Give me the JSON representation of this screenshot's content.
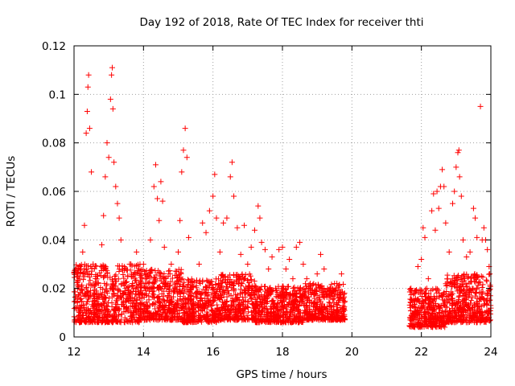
{
  "chart_data": {
    "type": "scatter",
    "title": "Day 192 of 2018, Rate Of TEC Index for receiver thti",
    "xlabel": "GPS time / hours",
    "ylabel": "ROTI / TECUs",
    "xlim": [
      12,
      24
    ],
    "ylim": [
      0,
      0.12
    ],
    "x_ticks": [
      12,
      14,
      16,
      18,
      20,
      22,
      24
    ],
    "x_tick_labels": [
      "12",
      "14",
      "16",
      "18",
      "20",
      "22",
      "24"
    ],
    "y_ticks": [
      0,
      0.02,
      0.04,
      0.06,
      0.08,
      0.1,
      0.12
    ],
    "y_tick_labels": [
      "0",
      "0.02",
      "0.04",
      "0.06",
      "0.08",
      "0.1",
      "0.12"
    ],
    "grid": true,
    "marker": "+",
    "marker_color": "#ff0000",
    "series": [
      {
        "name": "ROTI",
        "points": [
          [
            12.05,
            0.012
          ],
          [
            12.1,
            0.02
          ],
          [
            12.15,
            0.009
          ],
          [
            12.2,
            0.028
          ],
          [
            12.25,
            0.035
          ],
          [
            12.3,
            0.046
          ],
          [
            12.35,
            0.084
          ],
          [
            12.38,
            0.093
          ],
          [
            12.4,
            0.103
          ],
          [
            12.42,
            0.108
          ],
          [
            12.45,
            0.086
          ],
          [
            12.5,
            0.068
          ],
          [
            12.55,
            0.03
          ],
          [
            12.6,
            0.015
          ],
          [
            12.7,
            0.022
          ],
          [
            12.8,
            0.038
          ],
          [
            12.85,
            0.05
          ],
          [
            12.9,
            0.066
          ],
          [
            12.95,
            0.08
          ],
          [
            13.0,
            0.074
          ],
          [
            13.05,
            0.098
          ],
          [
            13.08,
            0.108
          ],
          [
            13.1,
            0.111
          ],
          [
            13.12,
            0.094
          ],
          [
            13.15,
            0.072
          ],
          [
            13.2,
            0.062
          ],
          [
            13.25,
            0.055
          ],
          [
            13.3,
            0.049
          ],
          [
            13.35,
            0.04
          ],
          [
            13.4,
            0.028
          ],
          [
            13.5,
            0.02
          ],
          [
            13.6,
            0.03
          ],
          [
            13.7,
            0.025
          ],
          [
            13.8,
            0.035
          ],
          [
            13.9,
            0.018
          ],
          [
            14.0,
            0.03
          ],
          [
            14.1,
            0.024
          ],
          [
            14.2,
            0.04
          ],
          [
            14.3,
            0.062
          ],
          [
            14.35,
            0.071
          ],
          [
            14.4,
            0.057
          ],
          [
            14.45,
            0.048
          ],
          [
            14.5,
            0.064
          ],
          [
            14.55,
            0.056
          ],
          [
            14.6,
            0.037
          ],
          [
            14.7,
            0.022
          ],
          [
            14.8,
            0.03
          ],
          [
            14.9,
            0.02
          ],
          [
            15.0,
            0.035
          ],
          [
            15.05,
            0.048
          ],
          [
            15.1,
            0.068
          ],
          [
            15.15,
            0.077
          ],
          [
            15.2,
            0.086
          ],
          [
            15.25,
            0.074
          ],
          [
            15.3,
            0.041
          ],
          [
            15.4,
            0.018
          ],
          [
            15.5,
            0.012
          ],
          [
            15.6,
            0.03
          ],
          [
            15.7,
            0.047
          ],
          [
            15.8,
            0.043
          ],
          [
            15.9,
            0.052
          ],
          [
            16.0,
            0.058
          ],
          [
            16.05,
            0.067
          ],
          [
            16.1,
            0.049
          ],
          [
            16.2,
            0.035
          ],
          [
            16.3,
            0.047
          ],
          [
            16.4,
            0.049
          ],
          [
            16.5,
            0.066
          ],
          [
            16.55,
            0.072
          ],
          [
            16.6,
            0.058
          ],
          [
            16.7,
            0.045
          ],
          [
            16.8,
            0.034
          ],
          [
            16.9,
            0.046
          ],
          [
            17.0,
            0.03
          ],
          [
            17.1,
            0.037
          ],
          [
            17.2,
            0.044
          ],
          [
            17.3,
            0.054
          ],
          [
            17.35,
            0.049
          ],
          [
            17.4,
            0.039
          ],
          [
            17.5,
            0.036
          ],
          [
            17.6,
            0.028
          ],
          [
            17.7,
            0.033
          ],
          [
            17.8,
            0.02
          ],
          [
            17.9,
            0.036
          ],
          [
            18.0,
            0.037
          ],
          [
            18.1,
            0.028
          ],
          [
            18.2,
            0.032
          ],
          [
            18.3,
            0.024
          ],
          [
            18.4,
            0.037
          ],
          [
            18.5,
            0.039
          ],
          [
            18.6,
            0.03
          ],
          [
            18.7,
            0.024
          ],
          [
            18.8,
            0.02
          ],
          [
            18.9,
            0.018
          ],
          [
            19.0,
            0.026
          ],
          [
            19.1,
            0.034
          ],
          [
            19.2,
            0.028
          ],
          [
            19.3,
            0.02
          ],
          [
            19.4,
            0.018
          ],
          [
            19.5,
            0.022
          ],
          [
            19.6,
            0.016
          ],
          [
            19.7,
            0.026
          ],
          [
            19.75,
            0.015
          ],
          [
            21.7,
            0.02
          ],
          [
            21.8,
            0.018
          ],
          [
            21.9,
            0.029
          ],
          [
            22.0,
            0.032
          ],
          [
            22.05,
            0.045
          ],
          [
            22.1,
            0.041
          ],
          [
            22.2,
            0.024
          ],
          [
            22.3,
            0.052
          ],
          [
            22.35,
            0.059
          ],
          [
            22.4,
            0.044
          ],
          [
            22.45,
            0.06
          ],
          [
            22.5,
            0.053
          ],
          [
            22.55,
            0.062
          ],
          [
            22.6,
            0.069
          ],
          [
            22.65,
            0.062
          ],
          [
            22.7,
            0.047
          ],
          [
            22.8,
            0.035
          ],
          [
            22.9,
            0.055
          ],
          [
            22.95,
            0.06
          ],
          [
            23.0,
            0.07
          ],
          [
            23.05,
            0.076
          ],
          [
            23.08,
            0.077
          ],
          [
            23.1,
            0.066
          ],
          [
            23.15,
            0.058
          ],
          [
            23.2,
            0.04
          ],
          [
            23.3,
            0.033
          ],
          [
            23.4,
            0.035
          ],
          [
            23.5,
            0.053
          ],
          [
            23.55,
            0.049
          ],
          [
            23.6,
            0.041
          ],
          [
            23.7,
            0.095
          ],
          [
            23.75,
            0.04
          ],
          [
            23.8,
            0.045
          ],
          [
            23.85,
            0.04
          ],
          [
            23.9,
            0.036
          ],
          [
            23.95,
            0.029
          ]
        ]
      }
    ],
    "dense_band": {
      "segments": [
        {
          "from": 12.0,
          "to": 13.9,
          "baseline_range": [
            0.006,
            0.03
          ]
        },
        {
          "from": 13.9,
          "to": 15.1,
          "baseline_range": [
            0.007,
            0.028
          ]
        },
        {
          "from": 15.1,
          "to": 16.2,
          "baseline_range": [
            0.006,
            0.024
          ]
        },
        {
          "from": 16.2,
          "to": 17.2,
          "baseline_range": [
            0.007,
            0.026
          ]
        },
        {
          "from": 17.2,
          "to": 18.6,
          "baseline_range": [
            0.006,
            0.021
          ]
        },
        {
          "from": 18.6,
          "to": 19.8,
          "baseline_range": [
            0.007,
            0.022
          ]
        },
        {
          "from": 21.65,
          "to": 22.7,
          "baseline_range": [
            0.004,
            0.02
          ]
        },
        {
          "from": 22.7,
          "to": 24.0,
          "baseline_range": [
            0.006,
            0.026
          ]
        }
      ],
      "points_per_hour": 320
    }
  }
}
